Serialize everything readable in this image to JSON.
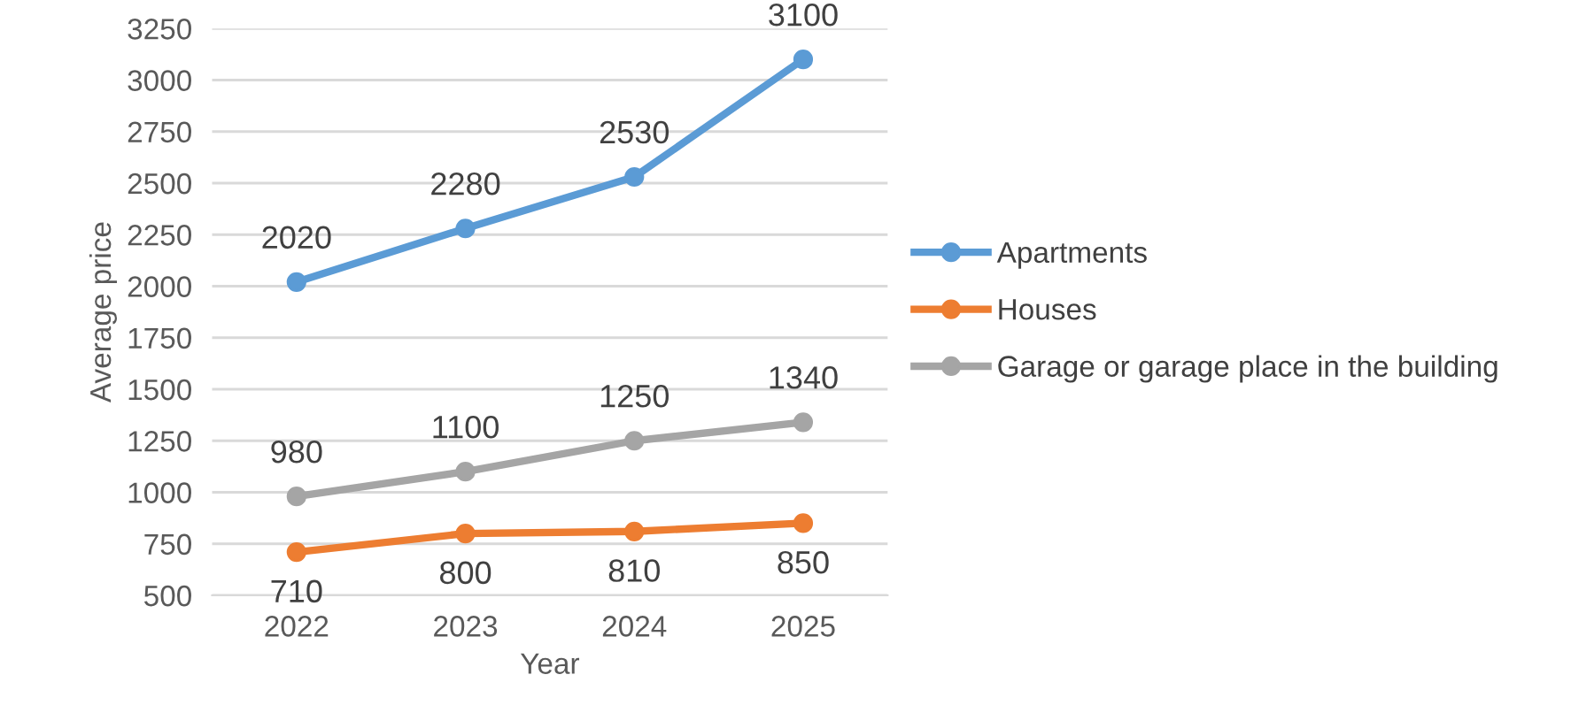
{
  "chart_data": {
    "type": "line",
    "xlabel": "Year",
    "ylabel": "Average price",
    "categories": [
      "2022",
      "2023",
      "2024",
      "2025"
    ],
    "series": [
      {
        "name": "Apartments",
        "color": "#5b9bd5",
        "values": [
          2020,
          2280,
          2530,
          3100
        ]
      },
      {
        "name": "Houses",
        "color": "#ed7d31",
        "values": [
          710,
          800,
          810,
          850
        ]
      },
      {
        "name": "Garage or garage place in the building",
        "color": "#a5a5a5",
        "values": [
          980,
          1100,
          1250,
          1340
        ]
      }
    ],
    "ylim": [
      500,
      3250
    ],
    "yticks": [
      500,
      750,
      1000,
      1250,
      1500,
      1750,
      2000,
      2250,
      2500,
      2750,
      3000,
      3250
    ],
    "grid": "y",
    "legend": "right",
    "marker": "circle",
    "line_style": "solid",
    "data_labels": true
  }
}
